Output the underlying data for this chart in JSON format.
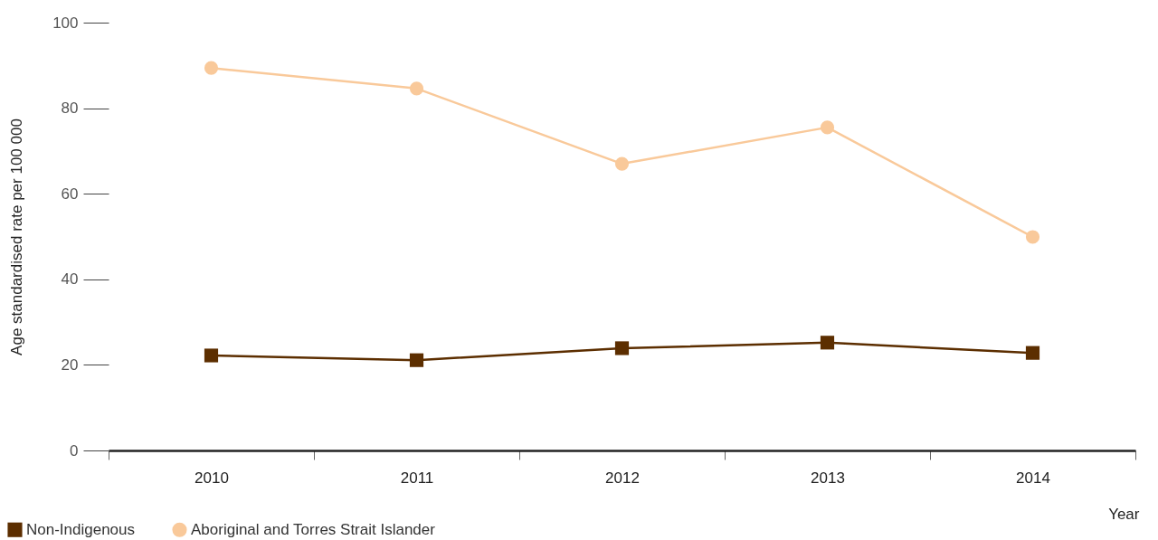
{
  "chart_data": {
    "type": "line",
    "xlabel": "Year",
    "ylabel": "Age standardised rate per 100 000",
    "categories": [
      "2010",
      "2011",
      "2012",
      "2013",
      "2014"
    ],
    "series": [
      {
        "name": "Non-Indigenous",
        "color": "#5c2e00",
        "marker": "square",
        "values": [
          22.2,
          21.1,
          23.9,
          25.2,
          22.8
        ]
      },
      {
        "name": "Aboriginal and Torres Strait Islander",
        "color": "#f9c99a",
        "marker": "circle",
        "values": [
          89.4,
          84.6,
          67.0,
          75.5,
          49.9
        ]
      }
    ],
    "ylim": [
      0,
      100
    ],
    "yticks": [
      0,
      20,
      40,
      60,
      80,
      100
    ],
    "grid": false,
    "legend": "bottom left"
  }
}
